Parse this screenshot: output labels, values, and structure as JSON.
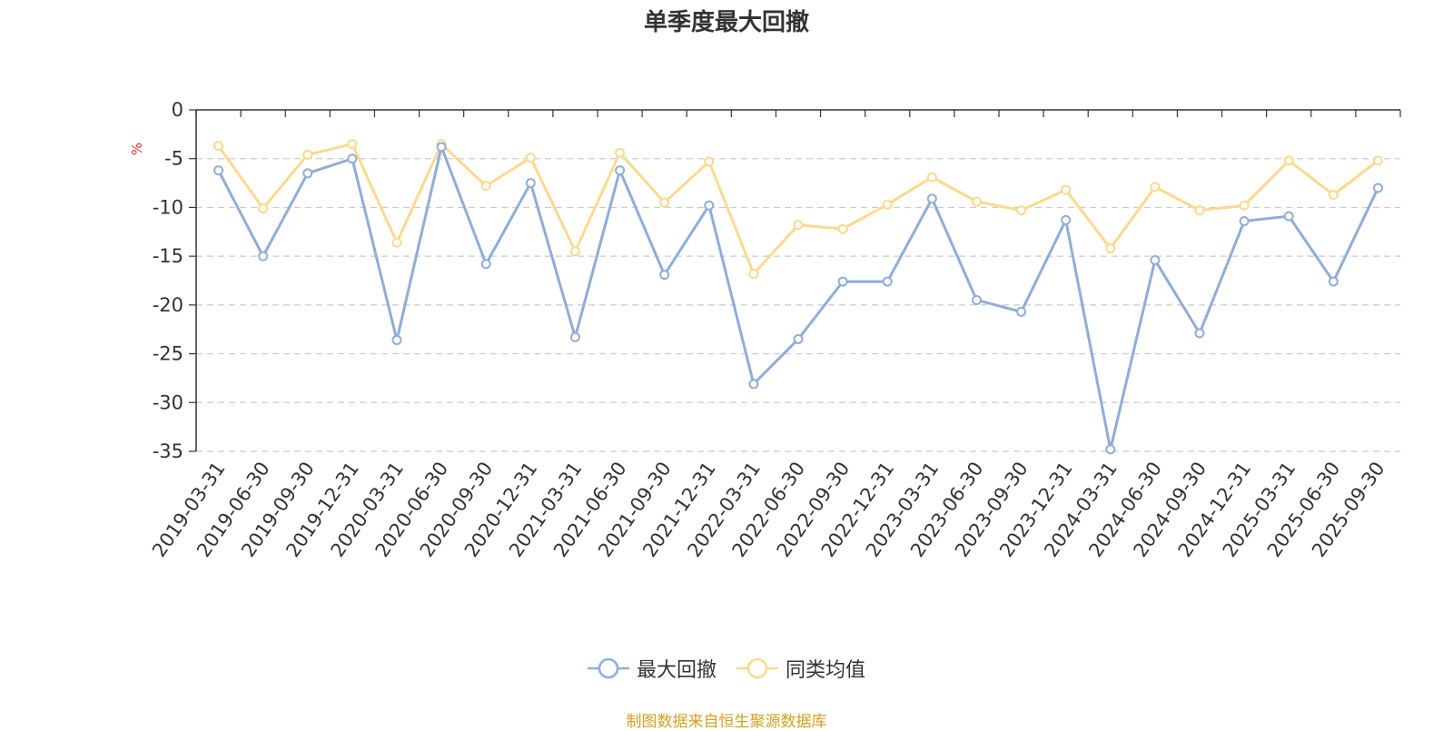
{
  "chart_data": {
    "type": "line",
    "title": "单季度最大回撤",
    "ylabel": "%",
    "ylim": [
      -35,
      0
    ],
    "yticks": [
      0,
      -5,
      -10,
      -15,
      -20,
      -25,
      -30,
      -35
    ],
    "grid": true,
    "legend_position": "bottom",
    "categories": [
      "2019-03-31",
      "2019-06-30",
      "2019-09-30",
      "2019-12-31",
      "2020-03-31",
      "2020-06-30",
      "2020-09-30",
      "2020-12-31",
      "2021-03-31",
      "2021-06-30",
      "2021-09-30",
      "2021-12-31",
      "2022-03-31",
      "2022-06-30",
      "2022-09-30",
      "2022-12-31",
      "2023-03-31",
      "2023-06-30",
      "2023-09-30",
      "2023-12-31",
      "2024-03-31",
      "2024-06-30",
      "2024-09-30",
      "2024-12-31",
      "2025-03-31",
      "2025-06-30",
      "2025-09-30"
    ],
    "series": [
      {
        "name": "最大回撤",
        "color": "#8fadd9",
        "values": [
          -6.2,
          -15.0,
          -6.5,
          -5.0,
          -23.6,
          -3.8,
          -15.8,
          -7.5,
          -23.3,
          -6.2,
          -16.9,
          -9.8,
          -28.1,
          -23.5,
          -17.6,
          -17.6,
          -9.1,
          -19.5,
          -20.7,
          -11.3,
          -34.8,
          -15.4,
          -22.9,
          -11.4,
          -10.9,
          -17.6,
          -8.0
        ]
      },
      {
        "name": "同类均值",
        "color": "#fbd98f",
        "values": [
          -3.7,
          -10.1,
          -4.6,
          -3.5,
          -13.6,
          -3.5,
          -7.8,
          -4.9,
          -14.5,
          -4.4,
          -9.5,
          -5.3,
          -16.8,
          -11.8,
          -12.2,
          -9.7,
          -6.9,
          -9.4,
          -10.3,
          -8.2,
          -14.2,
          -7.9,
          -10.3,
          -9.8,
          -5.2,
          -8.7,
          -5.2
        ]
      }
    ]
  },
  "source_text": "制图数据来自恒生聚源数据库"
}
